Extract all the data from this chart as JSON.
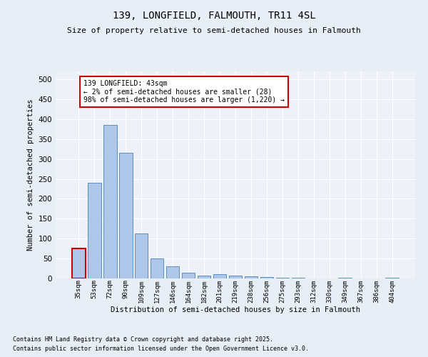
{
  "title1": "139, LONGFIELD, FALMOUTH, TR11 4SL",
  "title2": "Size of property relative to semi-detached houses in Falmouth",
  "xlabel": "Distribution of semi-detached houses by size in Falmouth",
  "ylabel": "Number of semi-detached properties",
  "categories": [
    "35sqm",
    "53sqm",
    "72sqm",
    "90sqm",
    "109sqm",
    "127sqm",
    "146sqm",
    "164sqm",
    "182sqm",
    "201sqm",
    "219sqm",
    "238sqm",
    "256sqm",
    "275sqm",
    "293sqm",
    "312sqm",
    "330sqm",
    "349sqm",
    "367sqm",
    "386sqm",
    "404sqm"
  ],
  "values": [
    75,
    240,
    385,
    315,
    113,
    50,
    30,
    14,
    8,
    10,
    7,
    5,
    3,
    1,
    1,
    0,
    0,
    2,
    0,
    0,
    2
  ],
  "bar_color": "#aec6e8",
  "bar_edge_color": "#5a8fc0",
  "highlight_edge_color": "#cc0000",
  "annotation_text": "139 LONGFIELD: 43sqm\n← 2% of semi-detached houses are smaller (28)\n98% of semi-detached houses are larger (1,220) →",
  "annotation_box_edge_color": "#cc0000",
  "ylim": [
    0,
    520
  ],
  "yticks": [
    0,
    50,
    100,
    150,
    200,
    250,
    300,
    350,
    400,
    450,
    500
  ],
  "footnote1": "Contains HM Land Registry data © Crown copyright and database right 2025.",
  "footnote2": "Contains public sector information licensed under the Open Government Licence v3.0.",
  "bg_color": "#e8eef5",
  "plot_bg_color": "#eef2f8",
  "grid_color": "#ffffff"
}
